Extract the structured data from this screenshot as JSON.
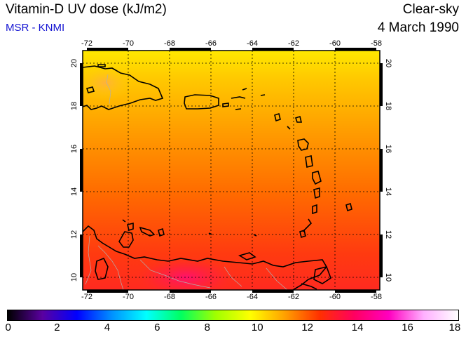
{
  "header": {
    "title": "Vitamin-D UV dose (kJ/m2)",
    "source": "MSR - KNMI",
    "condition": "Clear-sky",
    "date": "4 March 1990"
  },
  "map": {
    "lon_ticks": [
      "-72",
      "-70",
      "-68",
      "-66",
      "-64",
      "-62",
      "-60",
      "-58"
    ],
    "lat_ticks": [
      "10",
      "12",
      "14",
      "16",
      "18",
      "20"
    ],
    "lon_range": [
      -72,
      -58
    ],
    "lat_range": [
      9.5,
      20.5
    ]
  },
  "colorbar": {
    "ticks": [
      "0",
      "2",
      "4",
      "6",
      "8",
      "10",
      "12",
      "14",
      "16",
      "18"
    ],
    "range": [
      0,
      18
    ],
    "colors": [
      "#000000",
      "#5a00a0",
      "#0000ff",
      "#0090ff",
      "#00ffff",
      "#00ff60",
      "#a0ff00",
      "#ffff00",
      "#ffa000",
      "#ff3000",
      "#ff0060",
      "#ff00c0",
      "#ffb0ff",
      "#ffffff"
    ]
  }
}
